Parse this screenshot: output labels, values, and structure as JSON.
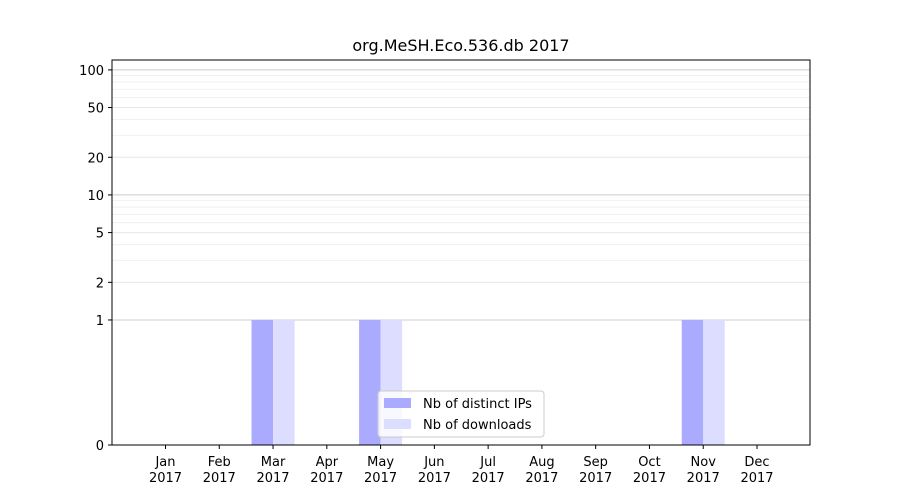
{
  "chart_data": {
    "type": "bar",
    "title": "org.MeSH.Eco.536.db 2017",
    "xlabel": "",
    "ylabel": "",
    "categories": [
      "Jan\n2017",
      "Feb\n2017",
      "Mar\n2017",
      "Apr\n2017",
      "May\n2017",
      "Jun\n2017",
      "Jul\n2017",
      "Aug\n2017",
      "Sep\n2017",
      "Oct\n2017",
      "Nov\n2017",
      "Dec\n2017"
    ],
    "series": [
      {
        "name": "Nb of distinct IPs",
        "color": "#aaaaff",
        "values": [
          0,
          0,
          1,
          0,
          1,
          0,
          0,
          0,
          0,
          0,
          1,
          0
        ]
      },
      {
        "name": "Nb of downloads",
        "color": "#ddddff",
        "values": [
          0,
          0,
          1,
          0,
          1,
          0,
          0,
          0,
          0,
          0,
          1,
          0
        ]
      }
    ],
    "y_scale": "symlog",
    "ylim": [
      0,
      120
    ],
    "y_ticks": [
      0,
      1,
      2,
      5,
      10,
      20,
      50,
      100
    ],
    "grid": true,
    "legend_position": "bottom-center"
  }
}
